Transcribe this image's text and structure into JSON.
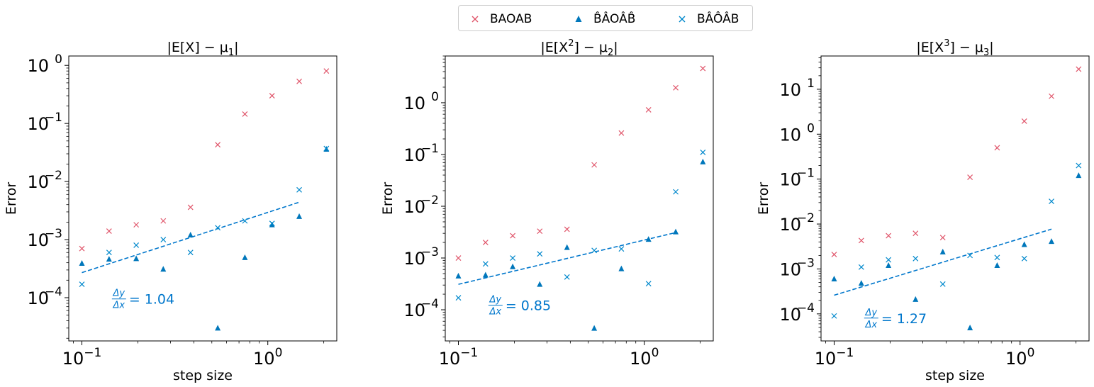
{
  "legend": {
    "items": [
      {
        "label": "BAOAB",
        "marker": "x",
        "color": "#e0556a"
      },
      {
        "label": "B̂ÂOÂB̂",
        "marker": "triangle",
        "color": "#0077bb"
      },
      {
        "label": "BÂÔÂB",
        "marker": "x",
        "color": "#0088cc"
      }
    ]
  },
  "chart_data": [
    {
      "type": "scatter",
      "title": "|E[X] − μ₁|",
      "title_sup": "",
      "title_sub": "1",
      "title_prefix": "|E[X] − μ",
      "xlabel": "step size",
      "ylabel": "Error",
      "xscale": "log",
      "yscale": "log",
      "xlim": [
        0.085,
        2.35
      ],
      "ylim": [
        1.8e-05,
        1.45
      ],
      "xticks": [
        {
          "value": 0.1,
          "base": "10",
          "exp": "−1"
        },
        {
          "value": 1,
          "base": "10",
          "exp": "0"
        }
      ],
      "yticks": [
        {
          "value": 0.0001,
          "base": "10",
          "exp": "−4"
        },
        {
          "value": 0.001,
          "base": "10",
          "exp": "−3"
        },
        {
          "value": 0.01,
          "base": "10",
          "exp": "−2"
        },
        {
          "value": 0.1,
          "base": "10",
          "exp": "−1"
        },
        {
          "value": 1,
          "base": "10",
          "exp": "0"
        }
      ],
      "x": [
        0.1,
        0.14,
        0.196,
        0.274,
        0.384,
        0.538,
        0.753,
        1.054,
        1.476,
        2.066
      ],
      "series": [
        {
          "name": "BAOAB",
          "marker": "x",
          "color": "#e0556a",
          "values": [
            0.0007,
            0.0014,
            0.0018,
            0.0021,
            0.0036,
            0.043,
            0.145,
            0.3,
            0.53,
            0.8
          ]
        },
        {
          "name": "B̂ÂOÂB̂",
          "marker": "triangle",
          "color": "#0077bb",
          "values": [
            0.00039,
            0.00046,
            0.00047,
            0.00031,
            0.0012,
            3e-05,
            0.00049,
            0.0018,
            0.0025,
            0.036
          ]
        },
        {
          "name": "BÂÔÂB",
          "marker": "x",
          "color": "#0088cc",
          "values": [
            0.00017,
            0.0006,
            0.0008,
            0.001,
            0.0006,
            0.0016,
            0.0021,
            0.0019,
            0.0072,
            0.037
          ]
        }
      ],
      "fit_line": {
        "x": [
          0.1,
          1.476
        ],
        "y": [
          0.00027,
          0.0044
        ],
        "color": "#0077cc",
        "style": "dashed"
      },
      "slope_annotation": {
        "text": "= 1.04",
        "fraction_num": "Δy",
        "fraction_den": "Δx",
        "x": 0.145,
        "y": 9e-05,
        "color": "#0077cc"
      }
    },
    {
      "type": "scatter",
      "title": "|E[X²] − μ₂|",
      "title_sup": "2",
      "title_sub": "2",
      "title_prefix": "|E[X",
      "xlabel": "",
      "ylabel": "Error",
      "xscale": "log",
      "yscale": "log",
      "xlim": [
        0.085,
        2.35
      ],
      "ylim": [
        2.5e-05,
        8.0
      ],
      "xticks": [
        {
          "value": 0.1,
          "base": "10",
          "exp": "−1"
        },
        {
          "value": 1,
          "base": "10",
          "exp": "0"
        }
      ],
      "yticks": [
        {
          "value": 0.0001,
          "base": "10",
          "exp": "−4"
        },
        {
          "value": 0.001,
          "base": "10",
          "exp": "−3"
        },
        {
          "value": 0.01,
          "base": "10",
          "exp": "−2"
        },
        {
          "value": 0.1,
          "base": "10",
          "exp": "−1"
        },
        {
          "value": 1,
          "base": "10",
          "exp": "0"
        }
      ],
      "x": [
        0.1,
        0.14,
        0.196,
        0.274,
        0.384,
        0.538,
        0.753,
        1.054,
        1.476,
        2.066
      ],
      "series": [
        {
          "name": "BAOAB",
          "marker": "x",
          "color": "#e0556a",
          "values": [
            0.001,
            0.002,
            0.0027,
            0.0033,
            0.0036,
            0.063,
            0.26,
            0.73,
            1.95,
            4.6
          ]
        },
        {
          "name": "B̂ÂOÂB̂",
          "marker": "triangle",
          "color": "#0077bb",
          "values": [
            0.00045,
            0.00047,
            0.00068,
            0.00031,
            0.0016,
            4.4e-05,
            0.00062,
            0.0023,
            0.0032,
            0.072
          ]
        },
        {
          "name": "BÂÔÂB",
          "marker": "x",
          "color": "#0088cc",
          "values": [
            0.00017,
            0.00077,
            0.001,
            0.0012,
            0.00043,
            0.0014,
            0.0015,
            0.00032,
            0.019,
            0.11
          ]
        }
      ],
      "fit_line": {
        "x": [
          0.1,
          1.476
        ],
        "y": [
          0.00031,
          0.0031
        ],
        "color": "#0077cc",
        "style": "dashed"
      },
      "slope_annotation": {
        "text": "= 0.85",
        "fraction_num": "Δy",
        "fraction_den": "Δx",
        "x": 0.145,
        "y": 0.000115,
        "color": "#0077cc"
      }
    },
    {
      "type": "scatter",
      "title": "|E[X³] − μ₃|",
      "title_sup": "3",
      "title_sub": "3",
      "title_prefix": "|E[X",
      "xlabel": "step size",
      "ylabel": "Error",
      "xscale": "log",
      "yscale": "log",
      "xlim": [
        0.085,
        2.35
      ],
      "ylim": [
        2.5e-05,
        55
      ],
      "xticks": [
        {
          "value": 0.1,
          "base": "10",
          "exp": "−1"
        },
        {
          "value": 1,
          "base": "10",
          "exp": "0"
        }
      ],
      "yticks": [
        {
          "value": 0.0001,
          "base": "10",
          "exp": "−4"
        },
        {
          "value": 0.001,
          "base": "10",
          "exp": "−3"
        },
        {
          "value": 0.01,
          "base": "10",
          "exp": "−2"
        },
        {
          "value": 0.1,
          "base": "10",
          "exp": "−1"
        },
        {
          "value": 1,
          "base": "10",
          "exp": "0"
        },
        {
          "value": 10,
          "base": "10",
          "exp": "1"
        }
      ],
      "x": [
        0.1,
        0.14,
        0.196,
        0.274,
        0.384,
        0.538,
        0.753,
        1.054,
        1.476,
        2.066
      ],
      "series": [
        {
          "name": "BAOAB",
          "marker": "x",
          "color": "#e0556a",
          "values": [
            0.0021,
            0.0043,
            0.0055,
            0.0062,
            0.005,
            0.11,
            0.5,
            1.95,
            7.0,
            28
          ]
        },
        {
          "name": "B̂ÂOÂB̂",
          "marker": "triangle",
          "color": "#0077bb",
          "values": [
            0.0006,
            0.00048,
            0.0012,
            0.00021,
            0.0024,
            4.9e-05,
            0.0012,
            0.0035,
            0.0041,
            0.12
          ]
        },
        {
          "name": "BÂÔÂB",
          "marker": "x",
          "color": "#0088cc",
          "values": [
            9e-05,
            0.0011,
            0.0016,
            0.0017,
            0.00046,
            0.002,
            0.0018,
            0.0017,
            0.032,
            0.2
          ]
        }
      ],
      "fit_line": {
        "x": [
          0.1,
          1.476
        ],
        "y": [
          0.00026,
          0.0077
        ],
        "color": "#0077cc",
        "style": "dashed"
      },
      "slope_annotation": {
        "text": "= 1.27",
        "fraction_num": "Δy",
        "fraction_den": "Δx",
        "x": 0.145,
        "y": 7.5e-05,
        "color": "#0077cc"
      }
    }
  ]
}
